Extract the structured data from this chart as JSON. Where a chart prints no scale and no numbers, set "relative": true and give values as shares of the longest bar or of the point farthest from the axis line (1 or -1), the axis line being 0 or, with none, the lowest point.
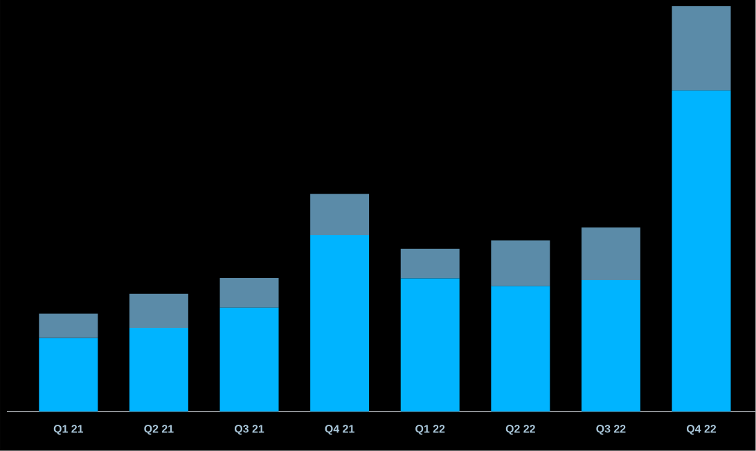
{
  "chart_data": {
    "type": "bar",
    "relative": true,
    "stacked": true,
    "categories": [
      "Q1 21",
      "Q2 21",
      "Q3 21",
      "Q4 21",
      "Q1 22",
      "Q2 22",
      "Q3 22",
      "Q4 22"
    ],
    "series": [
      {
        "color": "#00b4ff",
        "values": [
          0.181,
          0.206,
          0.256,
          0.435,
          0.328,
          0.309,
          0.324,
          0.792
        ]
      },
      {
        "color": "#5b8ba8",
        "values": [
          0.06,
          0.084,
          0.073,
          0.102,
          0.073,
          0.113,
          0.13,
          0.208
        ]
      }
    ]
  }
}
